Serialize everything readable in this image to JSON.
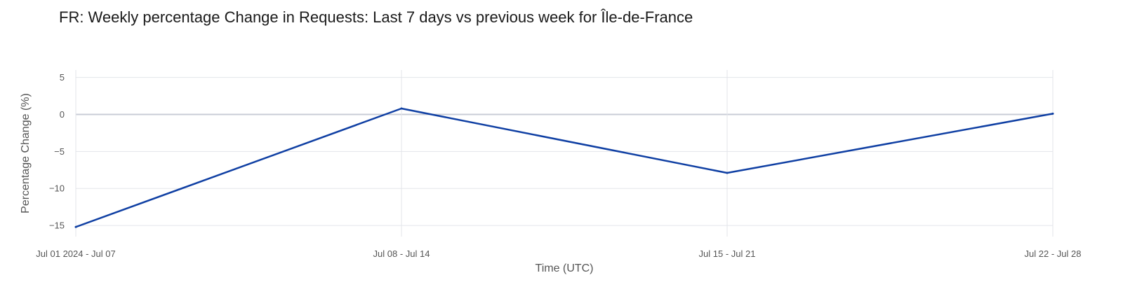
{
  "chart_data": {
    "type": "line",
    "title": "FR: Weekly percentage Change in Requests: Last 7 days vs previous week for Île-de-France",
    "xlabel": "Time (UTC)",
    "ylabel": "Percentage Change (%)",
    "categories": [
      "Jul 01 2024 - Jul 07",
      "Jul 08 - Jul 14",
      "Jul 15 - Jul 21",
      "Jul 22 - Jul 28"
    ],
    "series": [
      {
        "values": [
          -15.2,
          0.8,
          -7.9,
          0.1
        ],
        "color": "#0f3fa3"
      }
    ],
    "yticks": [
      5,
      0,
      -5,
      -10,
      -15
    ],
    "ylim": [
      -16.5,
      6
    ],
    "grid": true,
    "legend": "none"
  }
}
